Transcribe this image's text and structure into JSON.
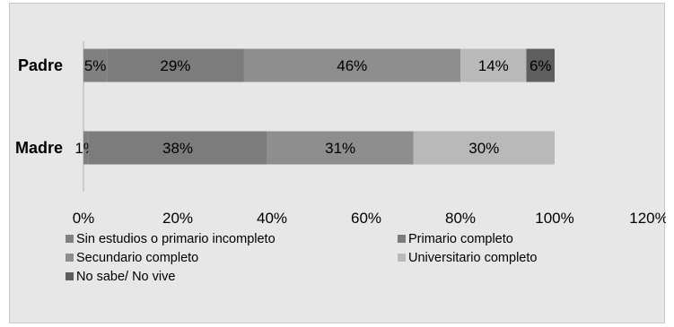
{
  "chart_data": {
    "type": "bar",
    "orientation": "horizontal",
    "stacked": true,
    "categories": [
      "Padre",
      "Madre"
    ],
    "series": [
      {
        "name": "Sin estudios o primario incompleto",
        "values": [
          5,
          1
        ],
        "labels": [
          "5%",
          "1%"
        ],
        "color": "#808080"
      },
      {
        "name": "Primario completo",
        "values": [
          29,
          38
        ],
        "labels": [
          "29%",
          "38%"
        ],
        "color": "#7c7c7c"
      },
      {
        "name": "Secundario completo",
        "values": [
          46,
          31
        ],
        "labels": [
          "46%",
          "31%"
        ],
        "color": "#8e8e8e"
      },
      {
        "name": "Universitario completo",
        "values": [
          14,
          30
        ],
        "labels": [
          "14%",
          "30%"
        ],
        "color": "#b9b9b9"
      },
      {
        "name": "No sabe/ No vive",
        "values": [
          6,
          0
        ],
        "labels": [
          "6%",
          ""
        ],
        "color": "#5e5e5e"
      }
    ],
    "xlim": [
      0,
      120
    ],
    "x_ticks": [
      "0%",
      "20%",
      "40%",
      "60%",
      "80%",
      "100%",
      "120%"
    ],
    "grid": false,
    "legend_position": "bottom"
  }
}
